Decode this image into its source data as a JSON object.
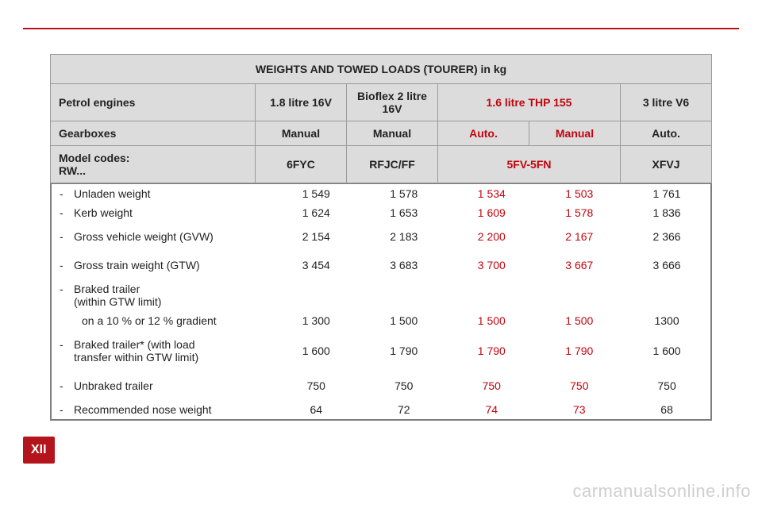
{
  "colors": {
    "accent": "#b4151c",
    "red_text": "#c1040c",
    "header_bg": "#dcdcdc",
    "bg": "#ffffff",
    "page_bg": "#000000"
  },
  "chapter_num": "XII",
  "watermark": "carmanualsonline.info",
  "table": {
    "title": "WEIGHTS AND TOWED LOADS (TOURER) in kg",
    "h1": {
      "label": "Petrol engines",
      "c1": "1.8 litre 16V",
      "c2": "Bioflex 2 litre 16V",
      "c3": "1.6 litre THP 155",
      "c4": "3 litre V6"
    },
    "h2": {
      "label": "Gearboxes",
      "c1": "Manual",
      "c2": "Manual",
      "c3": "Auto.",
      "c4": "Manual",
      "c5": "Auto."
    },
    "h3": {
      "label_l1": "Model codes:",
      "label_l2": "RW...",
      "c1": "6FYC",
      "c2": "RFJC/FF",
      "c3": "5FV-5FN",
      "c4": "XFVJ"
    },
    "rows": [
      {
        "label": "Unladen weight",
        "dash": true,
        "v": [
          "1 549",
          "1 578",
          "1 534",
          "1 503",
          "1 761"
        ],
        "red": [
          false,
          false,
          true,
          true,
          false
        ]
      },
      {
        "label": "Kerb weight",
        "dash": true,
        "v": [
          "1 624",
          "1 653",
          "1 609",
          "1 578",
          "1 836"
        ],
        "red": [
          false,
          false,
          true,
          true,
          false
        ]
      },
      {
        "label": "Gross vehicle weight (GVW)",
        "dash": true,
        "gap": true,
        "v": [
          "2 154",
          "2 183",
          "2 200",
          "2 167",
          "2 366"
        ],
        "red": [
          false,
          false,
          true,
          true,
          false
        ]
      },
      {
        "label": "Gross train weight (GTW)",
        "dash": true,
        "gap": true,
        "v": [
          "3 454",
          "3 683",
          "3 700",
          "3 667",
          "3 666"
        ],
        "red": [
          false,
          false,
          true,
          true,
          false
        ]
      },
      {
        "label": "Braked trailer",
        "label2": "(within GTW limit)",
        "dash": true,
        "v": [
          "",
          "",
          "",
          "",
          ""
        ],
        "red": [
          false,
          false,
          false,
          false,
          false
        ]
      },
      {
        "label": "on a 10 % or 12 % gradient",
        "dash": false,
        "indent": true,
        "v": [
          "1 300",
          "1 500",
          "1 500",
          "1 500",
          "1300"
        ],
        "red": [
          false,
          false,
          true,
          true,
          false
        ]
      },
      {
        "label": "Braked trailer* (with load",
        "label2": "transfer within GTW limit)",
        "dash": true,
        "gap": true,
        "v": [
          "1 600",
          "1 790",
          "1 790",
          "1 790",
          "1 600"
        ],
        "red": [
          false,
          false,
          true,
          true,
          false
        ]
      },
      {
        "label": "Unbraked trailer",
        "dash": true,
        "gap": true,
        "v": [
          "750",
          "750",
          "750",
          "750",
          "750"
        ],
        "red": [
          false,
          false,
          true,
          true,
          false
        ]
      },
      {
        "label": "Recommended nose weight",
        "dash": true,
        "v": [
          "64",
          "72",
          "74",
          "73",
          "68"
        ],
        "red": [
          false,
          false,
          true,
          true,
          false
        ]
      }
    ]
  }
}
